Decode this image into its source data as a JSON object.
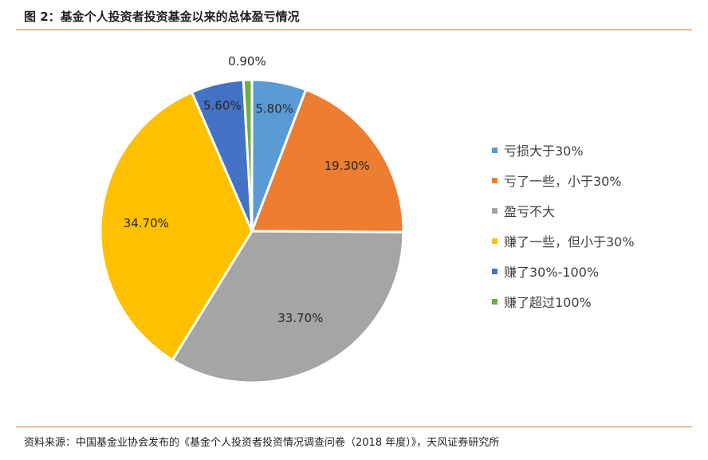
{
  "figure": {
    "title": "图 2：基金个人投资者投资基金以来的总体盈亏情况",
    "source": "资料来源：中国基金业协会发布的《基金个人投资者投资情况调查问卷（2018 年度）》，天风证券研究所"
  },
  "chart_data": {
    "type": "pie",
    "title": "",
    "legend_position": "right",
    "slices": [
      {
        "name": "亏损大于30%",
        "value": 5.8,
        "label": "5.80%",
        "color": "#5b9bd5"
      },
      {
        "name": "亏了一些，小于30%",
        "value": 19.3,
        "label": "19.30%",
        "color": "#ed7d31"
      },
      {
        "name": "盈亏不大",
        "value": 33.7,
        "label": "33.70%",
        "color": "#a5a5a5"
      },
      {
        "name": "赚了一些，但小于30%",
        "value": 34.7,
        "label": "34.70%",
        "color": "#ffc000"
      },
      {
        "name": "赚了30%-100%",
        "value": 5.6,
        "label": "5.60%",
        "color": "#4472c4"
      },
      {
        "name": "赚了超过100%",
        "value": 0.9,
        "label": "0.90%",
        "color": "#70ad47"
      }
    ]
  }
}
